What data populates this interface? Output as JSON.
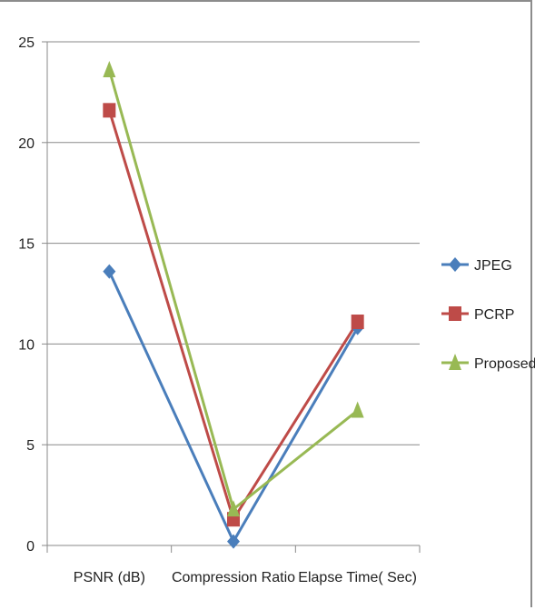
{
  "chart_data": {
    "type": "line",
    "title": "",
    "xlabel": "",
    "ylabel": "",
    "categories": [
      "PSNR (dB)",
      "Compression Ratio",
      "Elapse Time( Sec)"
    ],
    "ylim": [
      0,
      25
    ],
    "yticks": [
      "0",
      "5",
      "10",
      "15",
      "20",
      "25"
    ],
    "grid": true,
    "legend_position": "right",
    "series": [
      {
        "name": "JPEG",
        "values": [
          13.6,
          0.2,
          10.8
        ],
        "color": "#4a7ebb",
        "marker": "diamond"
      },
      {
        "name": "PCRP",
        "values": [
          21.6,
          1.3,
          11.1
        ],
        "color": "#be4b48",
        "marker": "square"
      },
      {
        "name": "Proposed",
        "values": [
          23.6,
          1.8,
          6.7
        ],
        "color": "#98b954",
        "marker": "triangle"
      }
    ]
  }
}
